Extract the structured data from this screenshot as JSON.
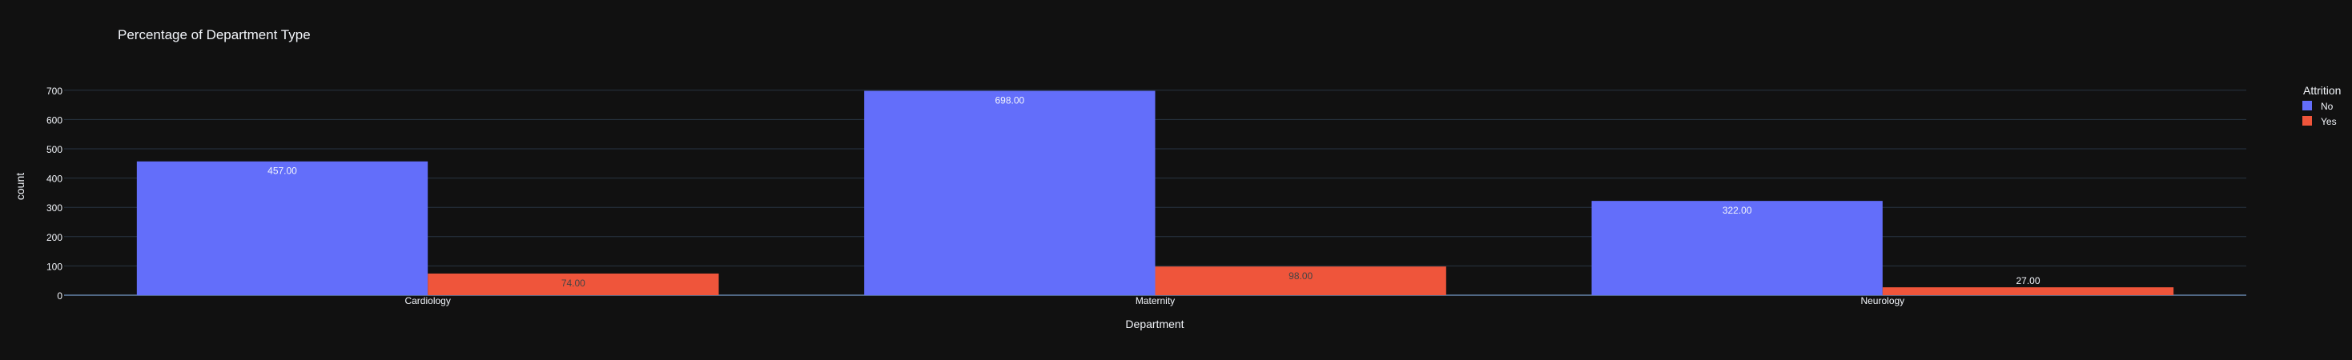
{
  "chart_data": {
    "type": "bar",
    "title": "Percentage of Department Type",
    "xlabel": "Department",
    "ylabel": "count",
    "categories": [
      "Cardiology",
      "Maternity",
      "Neurology"
    ],
    "series": [
      {
        "name": "No",
        "values": [
          457,
          698,
          322
        ],
        "color": "#636efa",
        "labels": [
          "457.00",
          "698.00",
          "322.00"
        ]
      },
      {
        "name": "Yes",
        "values": [
          74,
          98,
          27
        ],
        "color": "#ef553b",
        "labels": [
          "74.00",
          "98.00",
          "27.00"
        ]
      }
    ],
    "ylim": [
      0,
      735
    ],
    "yticks": [
      0,
      100,
      200,
      300,
      400,
      500,
      600,
      700
    ],
    "grid": true,
    "legend_title": "Attrition",
    "legend_position": "top-right",
    "background": "#111111",
    "grid_color": "#283442",
    "text_color": "#f2f5fa"
  }
}
